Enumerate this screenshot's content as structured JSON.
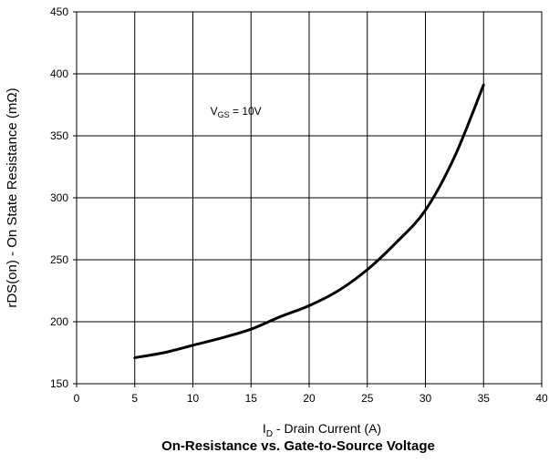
{
  "chart_data": {
    "type": "line",
    "title": "On-Resistance vs. Gate-to-Source Voltage",
    "xlabel": {
      "prefix": "I",
      "subscript": "D",
      "rest": " - Drain Current (A)"
    },
    "ylabel": "rDS(on) - On State Resistance (mΩ)",
    "xlim": [
      0,
      40
    ],
    "ylim": [
      150,
      450
    ],
    "xticks": [
      0,
      5,
      10,
      15,
      20,
      25,
      30,
      35,
      40
    ],
    "yticks": [
      150,
      200,
      250,
      300,
      350,
      400,
      450
    ],
    "grid": true,
    "annotation": {
      "prefix": "V",
      "subscript": "GS",
      "rest": " = 10V",
      "x": 11.5,
      "y": 367
    },
    "series": [
      {
        "x": [
          5,
          7.5,
          10,
          12.5,
          15,
          17.5,
          20,
          22.5,
          25,
          27.5,
          30,
          32.5,
          35
        ],
        "y": [
          171,
          175,
          181,
          187,
          194,
          204,
          213,
          225,
          242,
          264,
          290,
          333,
          391
        ]
      }
    ],
    "colors": {
      "line": "#000000",
      "grid": "#000000"
    }
  }
}
